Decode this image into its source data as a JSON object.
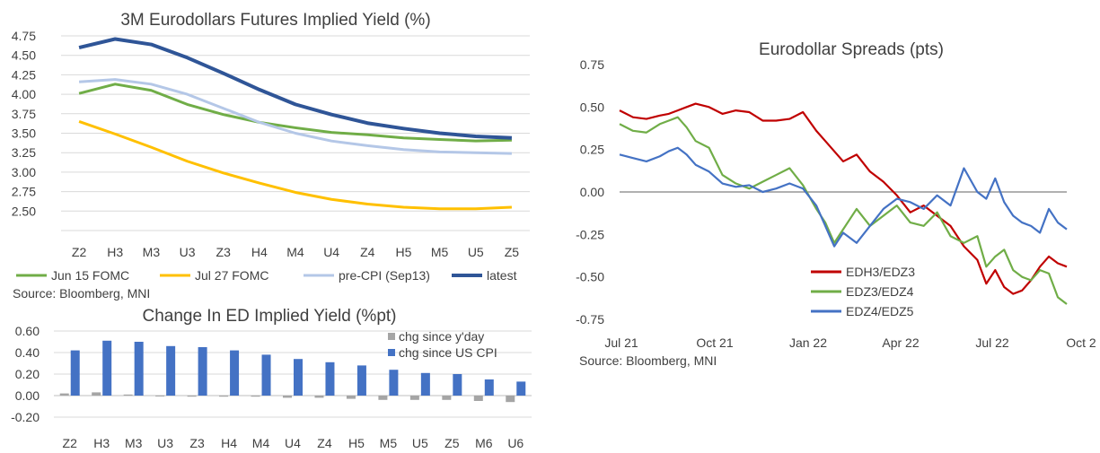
{
  "chart_data": [
    {
      "type": "line",
      "title": "3M Eurodollars Futures Implied Yield (%)",
      "categories": [
        "Z2",
        "H3",
        "M3",
        "U3",
        "Z3",
        "H4",
        "M4",
        "U4",
        "Z4",
        "H5",
        "M5",
        "U5",
        "Z5"
      ],
      "ylim": [
        2.25,
        4.75
      ],
      "yticks": [
        "2.50",
        "2.75",
        "3.00",
        "3.25",
        "3.50",
        "3.75",
        "4.00",
        "4.25",
        "4.50",
        "4.75"
      ],
      "grid": true,
      "legend": "bottom",
      "series": [
        {
          "name": "Jun 15 FOMC",
          "color": "#70ad47",
          "values": [
            4.01,
            4.13,
            4.05,
            3.87,
            3.74,
            3.64,
            3.57,
            3.51,
            3.48,
            3.44,
            3.42,
            3.4,
            3.41
          ]
        },
        {
          "name": "Jul 27 FOMC",
          "color": "#ffc000",
          "values": [
            3.65,
            3.49,
            3.32,
            3.14,
            2.99,
            2.86,
            2.74,
            2.65,
            2.59,
            2.55,
            2.53,
            2.53,
            2.55
          ]
        },
        {
          "name": "pre-CPI (Sep13)",
          "color": "#b4c7e7",
          "values": [
            4.16,
            4.19,
            4.13,
            4.0,
            3.82,
            3.64,
            3.5,
            3.4,
            3.34,
            3.29,
            3.26,
            3.25,
            3.24
          ]
        },
        {
          "name": "latest",
          "color": "#2f5597",
          "values": [
            4.6,
            4.71,
            4.64,
            4.47,
            4.27,
            4.06,
            3.87,
            3.74,
            3.63,
            3.56,
            3.5,
            3.46,
            3.44
          ]
        }
      ],
      "source": "Source: Bloomberg, MNI"
    },
    {
      "type": "bar",
      "title": "Change In ED Implied Yield (%pt)",
      "categories": [
        "Z2",
        "H3",
        "M3",
        "U3",
        "Z3",
        "H4",
        "M4",
        "U4",
        "Z4",
        "H5",
        "M5",
        "U5",
        "Z5",
        "M6",
        "U6"
      ],
      "ylim": [
        -0.2,
        0.6
      ],
      "yticks": [
        "-0.20",
        "0.00",
        "0.20",
        "0.40",
        "0.60"
      ],
      "grid": true,
      "legend": "top-right",
      "series": [
        {
          "name": "chg since y'day",
          "color": "#a5a5a5",
          "values": [
            0.02,
            0.03,
            0.01,
            0.0,
            -0.01,
            -0.01,
            -0.01,
            -0.02,
            -0.02,
            -0.03,
            -0.04,
            -0.04,
            -0.04,
            -0.05,
            -0.06
          ]
        },
        {
          "name": "chg since US CPI",
          "color": "#4472c4",
          "values": [
            0.42,
            0.51,
            0.5,
            0.46,
            0.45,
            0.42,
            0.38,
            0.34,
            0.31,
            0.28,
            0.24,
            0.21,
            0.2,
            0.15,
            0.13
          ]
        }
      ]
    },
    {
      "type": "line",
      "title": "Eurodollar Spreads (pts)",
      "x_labels": [
        "Jul 21",
        "Oct 21",
        "Jan 22",
        "Apr 22",
        "Jul 22",
        "Oct 2"
      ],
      "ylim": [
        -0.75,
        0.75
      ],
      "yticks": [
        "-0.75",
        "-0.50",
        "-0.25",
        "0.00",
        "0.25",
        "0.50",
        "0.75"
      ],
      "grid": false,
      "legend": "bottom-center",
      "series": [
        {
          "name": "EDH3/EDZ3",
          "color": "#c00000",
          "x": [
            0,
            3,
            6,
            9,
            11,
            13,
            15,
            17,
            20,
            23,
            26,
            29,
            32,
            35,
            38,
            41,
            44,
            46,
            48,
            50,
            53,
            56,
            59,
            62,
            65,
            68,
            71,
            74,
            77,
            80,
            82,
            84,
            86,
            88,
            90,
            92,
            94,
            96,
            98,
            100
          ],
          "values": [
            0.48,
            0.44,
            0.43,
            0.45,
            0.46,
            0.48,
            0.5,
            0.52,
            0.5,
            0.46,
            0.48,
            0.47,
            0.42,
            0.42,
            0.43,
            0.47,
            0.36,
            0.3,
            0.24,
            0.18,
            0.22,
            0.12,
            0.06,
            -0.02,
            -0.12,
            -0.08,
            -0.14,
            -0.2,
            -0.32,
            -0.4,
            -0.54,
            -0.46,
            -0.56,
            -0.6,
            -0.58,
            -0.52,
            -0.44,
            -0.38,
            -0.42,
            -0.44
          ]
        },
        {
          "name": "EDZ3/EDZ4",
          "color": "#70ad47",
          "x": [
            0,
            3,
            6,
            9,
            11,
            13,
            15,
            17,
            20,
            23,
            26,
            29,
            32,
            35,
            38,
            41,
            44,
            46,
            48,
            50,
            53,
            56,
            59,
            62,
            65,
            68,
            71,
            74,
            77,
            80,
            82,
            84,
            86,
            88,
            90,
            92,
            94,
            96,
            98,
            100
          ],
          "values": [
            0.4,
            0.36,
            0.35,
            0.4,
            0.42,
            0.44,
            0.38,
            0.3,
            0.26,
            0.1,
            0.05,
            0.02,
            0.06,
            0.1,
            0.14,
            0.04,
            -0.1,
            -0.18,
            -0.3,
            -0.22,
            -0.1,
            -0.2,
            -0.14,
            -0.08,
            -0.18,
            -0.2,
            -0.12,
            -0.26,
            -0.3,
            -0.26,
            -0.44,
            -0.38,
            -0.34,
            -0.46,
            -0.5,
            -0.52,
            -0.46,
            -0.48,
            -0.62,
            -0.66
          ]
        },
        {
          "name": "EDZ4/EDZ5",
          "color": "#4472c4",
          "x": [
            0,
            3,
            6,
            9,
            11,
            13,
            15,
            17,
            20,
            23,
            26,
            29,
            32,
            35,
            38,
            41,
            44,
            46,
            48,
            50,
            53,
            56,
            59,
            62,
            65,
            68,
            71,
            74,
            77,
            80,
            82,
            84,
            86,
            88,
            90,
            92,
            94,
            96,
            98,
            100
          ],
          "values": [
            0.22,
            0.2,
            0.18,
            0.21,
            0.24,
            0.26,
            0.22,
            0.16,
            0.12,
            0.05,
            0.03,
            0.04,
            0.0,
            0.02,
            0.05,
            0.02,
            -0.08,
            -0.2,
            -0.32,
            -0.24,
            -0.3,
            -0.2,
            -0.1,
            -0.04,
            -0.06,
            -0.1,
            -0.02,
            -0.08,
            0.14,
            0.0,
            -0.04,
            0.08,
            -0.06,
            -0.14,
            -0.18,
            -0.2,
            -0.24,
            -0.1,
            -0.18,
            -0.22
          ]
        }
      ],
      "source": "Source: Bloomberg, MNI"
    }
  ]
}
